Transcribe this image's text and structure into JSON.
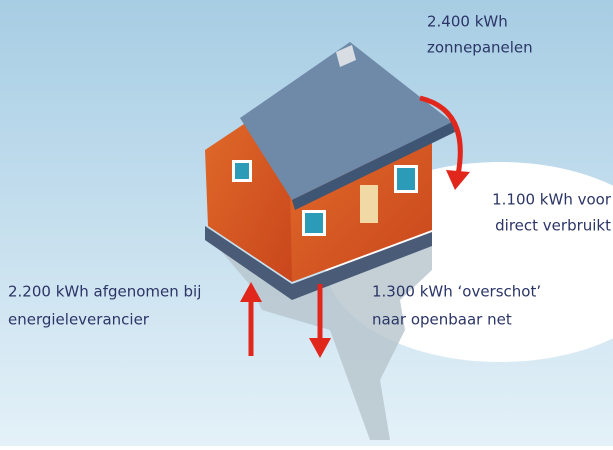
{
  "annotations": [
    {
      "lines": [
        "2.400 kWh",
        "zonnepanelen"
      ]
    },
    {
      "lines": [
        "1.100 kWh voor",
        "direct verbruikt"
      ]
    },
    {
      "lines": [
        "2.200 kWh afgenomen bij",
        "energieleverancier"
      ]
    },
    {
      "lines": [
        "1.300 kWh ‘overschot’",
        "naar openbaar net"
      ]
    }
  ]
}
